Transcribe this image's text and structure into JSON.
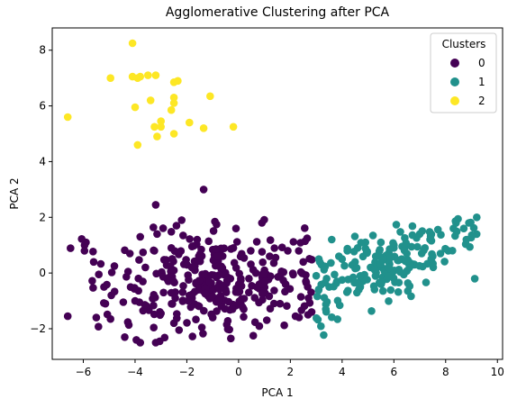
{
  "chart_data": {
    "type": "scatter",
    "title": "Agglomerative Clustering after PCA",
    "xlabel": "PCA 1",
    "ylabel": "PCA 2",
    "xlim": [
      -7.2,
      10.2
    ],
    "ylim": [
      -3.1,
      8.8
    ],
    "xticks": [
      -6,
      -4,
      -2,
      0,
      2,
      4,
      6,
      8,
      10
    ],
    "yticks": [
      -2,
      0,
      2,
      4,
      6,
      8
    ],
    "grid": false,
    "legend": {
      "title": "Clusters",
      "placement": "top-right"
    },
    "series": [
      {
        "name": "0",
        "color": "#440154",
        "center": [
          -0.8,
          -0.3
        ],
        "spread": [
          2.0,
          0.95
        ],
        "count": 300,
        "points": [
          [
            -6.6,
            -1.55
          ],
          [
            -5.9,
            1.1
          ],
          [
            -5.95,
            1.0
          ],
          [
            -5.6,
            0.4
          ],
          [
            -5.4,
            -0.05
          ],
          [
            -5.5,
            -1.6
          ],
          [
            -4.95,
            -1.65
          ],
          [
            -4.4,
            -2.3
          ],
          [
            -3.95,
            -2.4
          ],
          [
            -3.8,
            -2.5
          ],
          [
            -3.2,
            -2.5
          ],
          [
            -3.05,
            -2.45
          ],
          [
            -2.3,
            -2.05
          ],
          [
            -0.3,
            -2.35
          ],
          [
            -3.2,
            2.45
          ],
          [
            -1.35,
            3.0
          ],
          [
            -2.2,
            1.9
          ],
          [
            -2.4,
            1.7
          ],
          [
            -0.1,
            1.6
          ],
          [
            0.9,
            1.8
          ],
          [
            -3.8,
            1.3
          ],
          [
            -3.15,
            1.4
          ],
          [
            -1.6,
            1.2
          ],
          [
            -4.2,
            0.7
          ],
          [
            -4.8,
            0.25
          ],
          [
            -5.2,
            -0.5
          ],
          [
            -4.0,
            -1.0
          ],
          [
            -3.0,
            -1.45
          ],
          [
            -2.5,
            -1.8
          ],
          [
            -1.0,
            -1.6
          ],
          [
            1.6,
            -1.1
          ],
          [
            2.2,
            -1.55
          ],
          [
            2.6,
            -0.3
          ],
          [
            2.5,
            0.4
          ],
          [
            1.9,
            0.8
          ],
          [
            1.2,
            0.6
          ],
          [
            0.2,
            -1.3
          ],
          [
            -0.8,
            0.4
          ],
          [
            -1.8,
            -0.9
          ],
          [
            -1.2,
            -0.3
          ],
          [
            -0.5,
            -0.6
          ],
          [
            0.4,
            -0.2
          ],
          [
            1.0,
            0.1
          ],
          [
            -2.6,
            0.9
          ],
          [
            -3.6,
            0.2
          ],
          [
            -2.9,
            -0.7
          ],
          [
            -0.2,
            0.9
          ],
          [
            2.7,
            -0.9
          ]
        ]
      },
      {
        "name": "1",
        "color": "#21918c",
        "center": [
          5.6,
          0.2
        ],
        "spread": [
          1.8,
          0.6
        ],
        "count": 160,
        "points": [
          [
            3.0,
            -0.1
          ],
          [
            3.2,
            0.3
          ],
          [
            3.5,
            -0.5
          ],
          [
            3.6,
            1.2
          ],
          [
            3.8,
            -0.3
          ],
          [
            4.0,
            0.5
          ],
          [
            4.2,
            0.8
          ],
          [
            4.4,
            -0.2
          ],
          [
            4.6,
            0.9
          ],
          [
            4.9,
            1.1
          ],
          [
            5.1,
            0.2
          ],
          [
            5.3,
            0.6
          ],
          [
            5.5,
            1.1
          ],
          [
            5.8,
            0.4
          ],
          [
            6.0,
            0.9
          ],
          [
            6.3,
            0.5
          ],
          [
            6.5,
            0.7
          ],
          [
            6.8,
            0.3
          ],
          [
            7.0,
            1.4
          ],
          [
            7.2,
            0.9
          ],
          [
            7.5,
            0.6
          ],
          [
            7.8,
            0.7
          ],
          [
            8.1,
            0.8
          ],
          [
            8.3,
            1.6
          ],
          [
            8.4,
            1.8
          ],
          [
            8.7,
            1.6
          ],
          [
            8.9,
            1.8
          ],
          [
            9.2,
            2.0
          ],
          [
            7.4,
            1.2
          ],
          [
            6.0,
            1.0
          ],
          [
            4.7,
            -0.5
          ],
          [
            3.4,
            -0.2
          ],
          [
            5.9,
            0.0
          ],
          [
            4.5,
            0.4
          ],
          [
            6.6,
            0.2
          ],
          [
            3.1,
            0.5
          ]
        ]
      },
      {
        "name": "2",
        "color": "#fde725",
        "points": [
          [
            -4.1,
            8.25
          ],
          [
            -4.95,
            7.0
          ],
          [
            -4.1,
            7.05
          ],
          [
            -3.9,
            7.0
          ],
          [
            -3.8,
            7.05
          ],
          [
            -3.5,
            7.1
          ],
          [
            -3.2,
            7.1
          ],
          [
            -2.5,
            6.85
          ],
          [
            -2.35,
            6.9
          ],
          [
            -2.5,
            6.3
          ],
          [
            -3.4,
            6.2
          ],
          [
            -2.5,
            6.1
          ],
          [
            -1.1,
            6.35
          ],
          [
            -4.0,
            5.95
          ],
          [
            -2.6,
            5.85
          ],
          [
            -3.0,
            5.45
          ],
          [
            -3.0,
            5.25
          ],
          [
            -6.6,
            5.6
          ],
          [
            -1.9,
            5.4
          ],
          [
            -2.5,
            5.0
          ],
          [
            -1.35,
            5.2
          ],
          [
            -0.2,
            5.25
          ],
          [
            -3.15,
            4.9
          ],
          [
            -3.9,
            4.6
          ],
          [
            -3.25,
            5.25
          ]
        ]
      }
    ]
  }
}
